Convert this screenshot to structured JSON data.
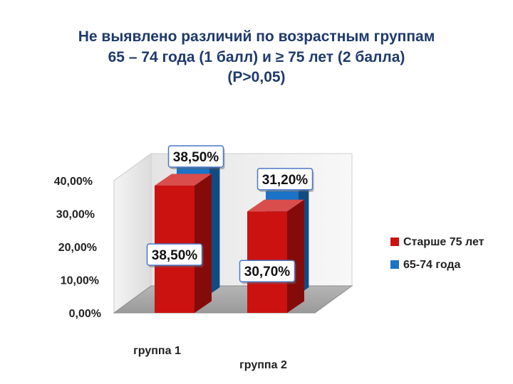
{
  "title": {
    "line1": "Не выявлено различий  по возрастным группам",
    "line2": "65 – 74 года (1 балл) и ≥ 75 лет (2 балла)",
    "line3": "(P>0,05)"
  },
  "chart_data": {
    "type": "bar",
    "three_d": true,
    "categories": [
      "группа 1",
      "группа 2"
    ],
    "series": [
      {
        "name": "Старше 75 лет",
        "values": [
          38.5,
          30.7
        ],
        "labels": [
          "38,50%",
          "30,70%"
        ],
        "color": "#cc1111"
      },
      {
        "name": "65-74 года",
        "values": [
          38.5,
          31.2
        ],
        "labels": [
          "38,50%",
          "31,20%"
        ],
        "color": "#1a73c8"
      }
    ],
    "y_ticks": [
      "0,00%",
      "10,00%",
      "20,00%",
      "30,00%",
      "40,00%"
    ],
    "ylim": [
      0,
      40
    ],
    "legend_position": "right",
    "grid": false
  }
}
